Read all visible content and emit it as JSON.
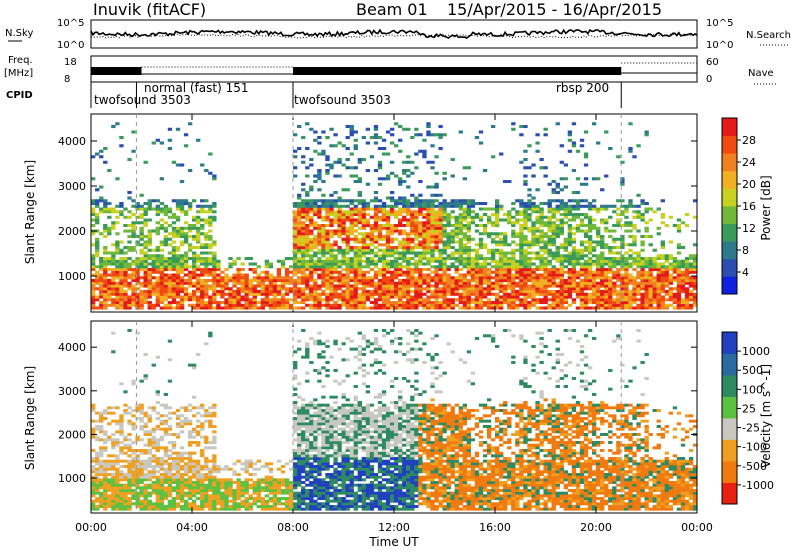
{
  "header": {
    "station": "Inuvik (fitACF)",
    "beam": "Beam 01",
    "dates": "15/Apr/2015 - 16/Apr/2015"
  },
  "top_strip": {
    "left_labels": [
      "N.Sky",
      "Freq.",
      "[MHz]",
      "CPID"
    ],
    "right_labels": [
      "N.Search",
      "Nave"
    ],
    "nsky_ticks": [
      "10^5",
      "10^0"
    ],
    "nsearch_ticks": [
      "10^5",
      "10^0"
    ],
    "freq_ticks": [
      "18",
      "8"
    ],
    "nave_ticks": [
      "60",
      "0"
    ],
    "cpid_segments": [
      {
        "label": "twofsound 3503",
        "start_hour": 0,
        "end_hour": 8
      },
      {
        "label": "normal (fast) 151",
        "start_hour": 2,
        "end_hour": 8
      },
      {
        "label": "twofsound 3503",
        "start_hour": 8,
        "end_hour": 21
      },
      {
        "label": "rbsp 200",
        "start_hour": 21,
        "end_hour": 24
      }
    ],
    "mode_change_hours": [
      0,
      1.8,
      8,
      21
    ]
  },
  "chart_data": [
    {
      "type": "heatmap",
      "panel": "power",
      "ylabel": "Slant Range [km]",
      "xlabel": "",
      "ylim": [
        200,
        4600
      ],
      "xlim_hours": [
        0,
        24
      ],
      "y_ticks": [
        "1000",
        "2000",
        "3000",
        "4000"
      ],
      "colorbar": {
        "label": "Power [dB]",
        "ticks": [
          "4",
          "8",
          "12",
          "16",
          "20",
          "24",
          "28"
        ],
        "colors": [
          "#1020e0",
          "#2a4fb0",
          "#2f7a8a",
          "#3a9a5a",
          "#6fb83a",
          "#c8d020",
          "#f0b020",
          "#f08020",
          "#f04a10",
          "#e41a1a"
        ]
      }
    },
    {
      "type": "heatmap",
      "panel": "velocity",
      "ylabel": "Slant Range [km]",
      "xlabel": "Time UT",
      "ylim": [
        200,
        4600
      ],
      "xlim_hours": [
        0,
        24
      ],
      "y_ticks": [
        "1000",
        "2000",
        "3000",
        "4000"
      ],
      "x_ticks": [
        "00:00",
        "04:00",
        "08:00",
        "12:00",
        "16:00",
        "20:00",
        "00:00"
      ],
      "colorbar": {
        "label": "Velocity [m s^-1]",
        "ticks": [
          "1000",
          "500",
          "100",
          "25",
          "-25",
          "-100",
          "-500",
          "-1000"
        ],
        "colors": [
          "#2040c0",
          "#2a6aa0",
          "#2e8a60",
          "#5cc040",
          "#c8c8c0",
          "#f0a020",
          "#f07a10",
          "#e82010"
        ]
      }
    }
  ]
}
